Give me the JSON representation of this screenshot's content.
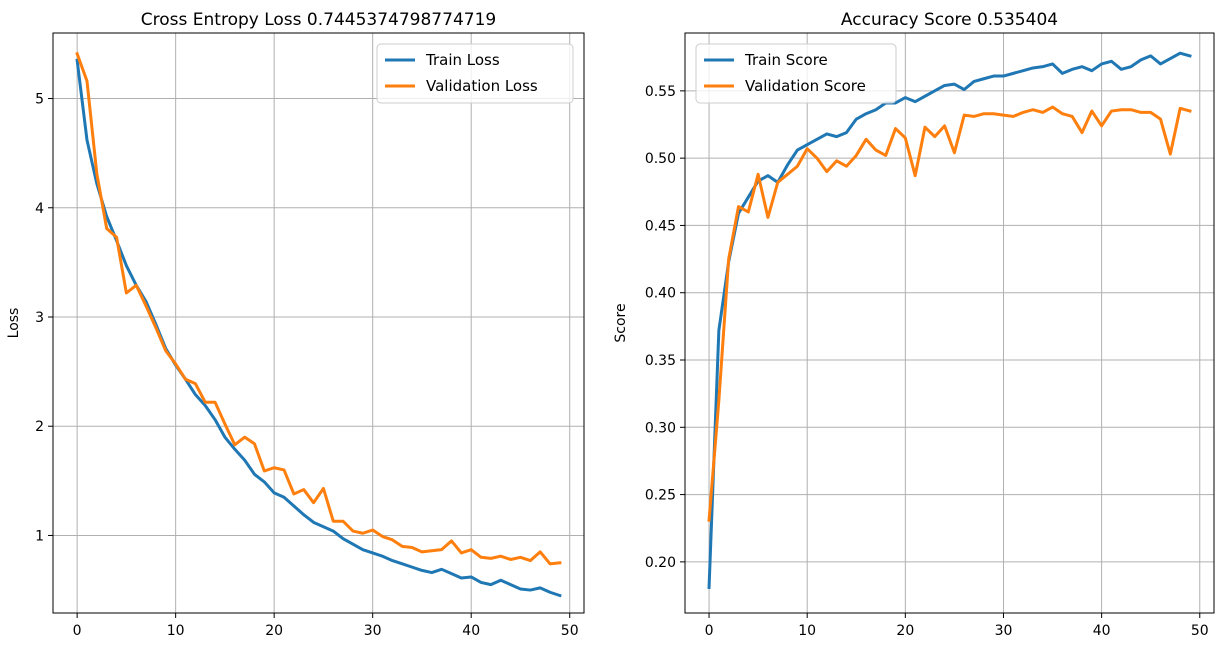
{
  "chart_data": [
    {
      "type": "line",
      "title": "Cross Entropy Loss 0.7445374798774719",
      "xlabel": "",
      "ylabel": "Loss",
      "xlim": [
        -2.45,
        51.45
      ],
      "ylim": [
        0.29,
        5.6
      ],
      "xticks": [
        0,
        10,
        20,
        30,
        40,
        50
      ],
      "xtick_labels": [
        "0",
        "10",
        "20",
        "30",
        "40",
        "50"
      ],
      "yticks": [
        1,
        2,
        3,
        4,
        5
      ],
      "ytick_labels": [
        "1",
        "2",
        "3",
        "4",
        "5"
      ],
      "grid": true,
      "legend": "upper right",
      "x": [
        0,
        1,
        2,
        3,
        4,
        5,
        6,
        7,
        8,
        9,
        10,
        11,
        12,
        13,
        14,
        15,
        16,
        17,
        18,
        19,
        20,
        21,
        22,
        23,
        24,
        25,
        26,
        27,
        28,
        29,
        30,
        31,
        32,
        33,
        34,
        35,
        36,
        37,
        38,
        39,
        40,
        41,
        42,
        43,
        44,
        45,
        46,
        47,
        48,
        49
      ],
      "series": [
        {
          "name": "Train Loss",
          "color": "#1f77b4",
          "values": [
            5.35,
            4.62,
            4.22,
            3.92,
            3.7,
            3.47,
            3.29,
            3.14,
            2.93,
            2.71,
            2.56,
            2.43,
            2.29,
            2.19,
            2.06,
            1.9,
            1.79,
            1.69,
            1.56,
            1.49,
            1.39,
            1.35,
            1.27,
            1.19,
            1.12,
            1.08,
            1.04,
            0.97,
            0.92,
            0.87,
            0.84,
            0.81,
            0.77,
            0.74,
            0.71,
            0.68,
            0.66,
            0.69,
            0.65,
            0.61,
            0.62,
            0.57,
            0.55,
            0.59,
            0.55,
            0.51,
            0.5,
            0.52,
            0.48,
            0.45
          ]
        },
        {
          "name": "Validation Loss",
          "color": "#ff7f0e",
          "values": [
            5.41,
            5.16,
            4.31,
            3.81,
            3.73,
            3.22,
            3.29,
            3.1,
            2.9,
            2.69,
            2.57,
            2.43,
            2.39,
            2.22,
            2.22,
            2.02,
            1.83,
            1.9,
            1.84,
            1.59,
            1.62,
            1.6,
            1.38,
            1.42,
            1.3,
            1.43,
            1.13,
            1.13,
            1.04,
            1.02,
            1.05,
            0.99,
            0.96,
            0.9,
            0.89,
            0.85,
            0.86,
            0.87,
            0.95,
            0.84,
            0.87,
            0.8,
            0.79,
            0.81,
            0.78,
            0.8,
            0.77,
            0.85,
            0.74,
            0.75
          ]
        }
      ]
    },
    {
      "type": "line",
      "title": "Accuracy Score 0.535404",
      "xlabel": "",
      "ylabel": "Score",
      "xlim": [
        -2.45,
        51.45
      ],
      "ylim": [
        0.162,
        0.593
      ],
      "xticks": [
        0,
        10,
        20,
        30,
        40,
        50
      ],
      "xtick_labels": [
        "0",
        "10",
        "20",
        "30",
        "40",
        "50"
      ],
      "yticks": [
        0.2,
        0.25,
        0.3,
        0.35,
        0.4,
        0.45,
        0.5,
        0.55
      ],
      "ytick_labels": [
        "0.20",
        "0.25",
        "0.30",
        "0.35",
        "0.40",
        "0.45",
        "0.50",
        "0.55"
      ],
      "grid": true,
      "legend": "upper left",
      "x": [
        0,
        1,
        2,
        3,
        4,
        5,
        6,
        7,
        8,
        9,
        10,
        11,
        12,
        13,
        14,
        15,
        16,
        17,
        18,
        19,
        20,
        21,
        22,
        23,
        24,
        25,
        26,
        27,
        28,
        29,
        30,
        31,
        32,
        33,
        34,
        35,
        36,
        37,
        38,
        39,
        40,
        41,
        42,
        43,
        44,
        45,
        46,
        47,
        48,
        49
      ],
      "series": [
        {
          "name": "Train Score",
          "color": "#1f77b4",
          "values": [
            0.181,
            0.372,
            0.423,
            0.459,
            0.471,
            0.483,
            0.487,
            0.482,
            0.495,
            0.506,
            0.51,
            0.514,
            0.518,
            0.516,
            0.519,
            0.529,
            0.533,
            0.536,
            0.541,
            0.541,
            0.545,
            0.542,
            0.546,
            0.55,
            0.554,
            0.555,
            0.551,
            0.557,
            0.559,
            0.561,
            0.561,
            0.563,
            0.565,
            0.567,
            0.568,
            0.57,
            0.563,
            0.566,
            0.568,
            0.565,
            0.57,
            0.572,
            0.566,
            0.568,
            0.573,
            0.576,
            0.57,
            0.574,
            0.578,
            0.576
          ]
        },
        {
          "name": "Validation Score",
          "color": "#ff7f0e",
          "values": [
            0.231,
            0.32,
            0.425,
            0.464,
            0.46,
            0.488,
            0.456,
            0.482,
            0.488,
            0.494,
            0.507,
            0.5,
            0.49,
            0.498,
            0.494,
            0.502,
            0.514,
            0.506,
            0.502,
            0.522,
            0.515,
            0.487,
            0.523,
            0.516,
            0.524,
            0.504,
            0.532,
            0.531,
            0.533,
            0.533,
            0.532,
            0.531,
            0.534,
            0.536,
            0.534,
            0.538,
            0.533,
            0.531,
            0.519,
            0.535,
            0.524,
            0.535,
            0.536,
            0.536,
            0.534,
            0.534,
            0.529,
            0.503,
            0.537,
            0.535
          ]
        }
      ]
    }
  ]
}
